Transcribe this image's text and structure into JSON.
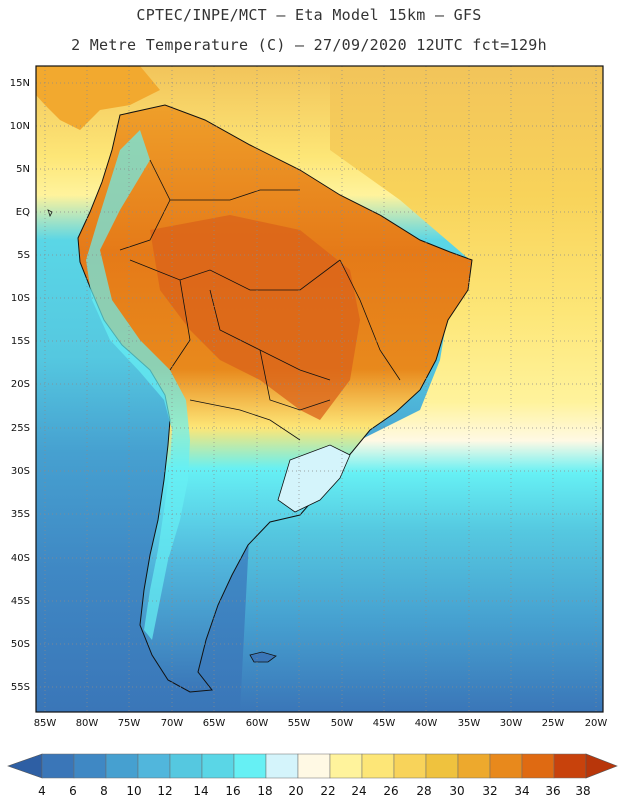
{
  "header": {
    "line1": "CPTEC/INPE/MCT –  Eta Model 15km – GFS",
    "line2": "2 Metre Temperature (C) – 27/09/2020 12UTC fct=129h"
  },
  "map": {
    "lat_labels": [
      "15N",
      "10N",
      "5N",
      "EQ",
      "5S",
      "10S",
      "15S",
      "20S",
      "25S",
      "30S",
      "35S",
      "40S",
      "45S",
      "50S",
      "55S"
    ],
    "lon_labels": [
      "85W",
      "80W",
      "75W",
      "70W",
      "65W",
      "60W",
      "55W",
      "50W",
      "45W",
      "40W",
      "35W",
      "30W",
      "25W",
      "20W"
    ]
  },
  "colorbar": {
    "levels": [
      "4",
      "6",
      "8",
      "10",
      "12",
      "14",
      "16",
      "18",
      "20",
      "22",
      "24",
      "26",
      "28",
      "30",
      "32",
      "34",
      "36",
      "38"
    ],
    "colors": [
      "#3a76b8",
      "#3f88c4",
      "#46a0d0",
      "#51b6dc",
      "#55c8e0",
      "#5ad6e6",
      "#66f0f4",
      "#d4f4fb",
      "#fff9e4",
      "#fff39c",
      "#fde677",
      "#f8d35a",
      "#efc23e",
      "#eda92d",
      "#e8891c",
      "#df6a12",
      "#c8420c"
    ],
    "under_color": "#2e5fa4",
    "over_color": "#b8360a"
  }
}
